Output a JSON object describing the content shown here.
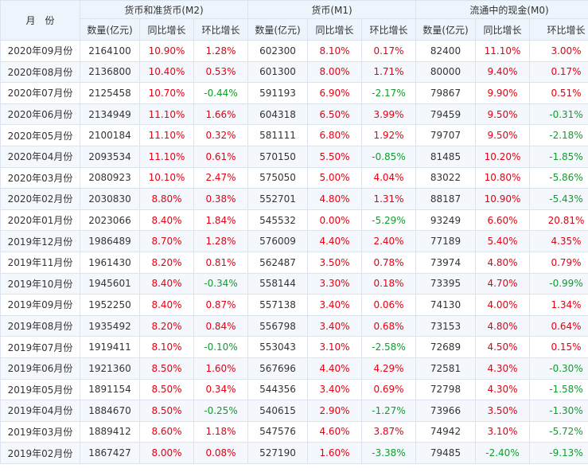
{
  "header": {
    "month": "月　份",
    "m2": "货币和准货币(M2)",
    "m1": "货币(M1)",
    "m0": "流通中的现金(M0)",
    "qty": "数量(亿元)",
    "yoy": "同比增长",
    "mom": "环比增长"
  },
  "colors": {
    "up": "#e60012",
    "down": "#0f9d2c",
    "header_bg": "#edf4fc",
    "stripe": "#f4f8fc"
  },
  "rows": [
    {
      "month": "2020年09月份",
      "m2": "2164100",
      "m2_yoy": "10.90%",
      "m2_mom": "1.28%",
      "m1": "602300",
      "m1_yoy": "8.10%",
      "m1_mom": "0.17%",
      "m0": "82400",
      "m0_yoy": "11.10%",
      "m0_mom": "3.00%"
    },
    {
      "month": "2020年08月份",
      "m2": "2136800",
      "m2_yoy": "10.40%",
      "m2_mom": "0.53%",
      "m1": "601300",
      "m1_yoy": "8.00%",
      "m1_mom": "1.71%",
      "m0": "80000",
      "m0_yoy": "9.40%",
      "m0_mom": "0.17%"
    },
    {
      "month": "2020年07月份",
      "m2": "2125458",
      "m2_yoy": "10.70%",
      "m2_mom": "-0.44%",
      "m1": "591193",
      "m1_yoy": "6.90%",
      "m1_mom": "-2.17%",
      "m0": "79867",
      "m0_yoy": "9.90%",
      "m0_mom": "0.51%"
    },
    {
      "month": "2020年06月份",
      "m2": "2134949",
      "m2_yoy": "11.10%",
      "m2_mom": "1.66%",
      "m1": "604318",
      "m1_yoy": "6.50%",
      "m1_mom": "3.99%",
      "m0": "79459",
      "m0_yoy": "9.50%",
      "m0_mom": "-0.31%"
    },
    {
      "month": "2020年05月份",
      "m2": "2100184",
      "m2_yoy": "11.10%",
      "m2_mom": "0.32%",
      "m1": "581111",
      "m1_yoy": "6.80%",
      "m1_mom": "1.92%",
      "m0": "79707",
      "m0_yoy": "9.50%",
      "m0_mom": "-2.18%"
    },
    {
      "month": "2020年04月份",
      "m2": "2093534",
      "m2_yoy": "11.10%",
      "m2_mom": "0.61%",
      "m1": "570150",
      "m1_yoy": "5.50%",
      "m1_mom": "-0.85%",
      "m0": "81485",
      "m0_yoy": "10.20%",
      "m0_mom": "-1.85%"
    },
    {
      "month": "2020年03月份",
      "m2": "2080923",
      "m2_yoy": "10.10%",
      "m2_mom": "2.47%",
      "m1": "575050",
      "m1_yoy": "5.00%",
      "m1_mom": "4.04%",
      "m0": "83022",
      "m0_yoy": "10.80%",
      "m0_mom": "-5.86%"
    },
    {
      "month": "2020年02月份",
      "m2": "2030830",
      "m2_yoy": "8.80%",
      "m2_mom": "0.38%",
      "m1": "552701",
      "m1_yoy": "4.80%",
      "m1_mom": "1.31%",
      "m0": "88187",
      "m0_yoy": "10.90%",
      "m0_mom": "-5.43%"
    },
    {
      "month": "2020年01月份",
      "m2": "2023066",
      "m2_yoy": "8.40%",
      "m2_mom": "1.84%",
      "m1": "545532",
      "m1_yoy": "0.00%",
      "m1_mom": "-5.29%",
      "m0": "93249",
      "m0_yoy": "6.60%",
      "m0_mom": "20.81%"
    },
    {
      "month": "2019年12月份",
      "m2": "1986489",
      "m2_yoy": "8.70%",
      "m2_mom": "1.28%",
      "m1": "576009",
      "m1_yoy": "4.40%",
      "m1_mom": "2.40%",
      "m0": "77189",
      "m0_yoy": "5.40%",
      "m0_mom": "4.35%"
    },
    {
      "month": "2019年11月份",
      "m2": "1961430",
      "m2_yoy": "8.20%",
      "m2_mom": "0.81%",
      "m1": "562487",
      "m1_yoy": "3.50%",
      "m1_mom": "0.78%",
      "m0": "73974",
      "m0_yoy": "4.80%",
      "m0_mom": "0.79%"
    },
    {
      "month": "2019年10月份",
      "m2": "1945601",
      "m2_yoy": "8.40%",
      "m2_mom": "-0.34%",
      "m1": "558144",
      "m1_yoy": "3.30%",
      "m1_mom": "0.18%",
      "m0": "73395",
      "m0_yoy": "4.70%",
      "m0_mom": "-0.99%"
    },
    {
      "month": "2019年09月份",
      "m2": "1952250",
      "m2_yoy": "8.40%",
      "m2_mom": "0.87%",
      "m1": "557138",
      "m1_yoy": "3.40%",
      "m1_mom": "0.06%",
      "m0": "74130",
      "m0_yoy": "4.00%",
      "m0_mom": "1.34%"
    },
    {
      "month": "2019年08月份",
      "m2": "1935492",
      "m2_yoy": "8.20%",
      "m2_mom": "0.84%",
      "m1": "556798",
      "m1_yoy": "3.40%",
      "m1_mom": "0.68%",
      "m0": "73153",
      "m0_yoy": "4.80%",
      "m0_mom": "0.64%"
    },
    {
      "month": "2019年07月份",
      "m2": "1919411",
      "m2_yoy": "8.10%",
      "m2_mom": "-0.10%",
      "m1": "553043",
      "m1_yoy": "3.10%",
      "m1_mom": "-2.58%",
      "m0": "72689",
      "m0_yoy": "4.50%",
      "m0_mom": "0.15%"
    },
    {
      "month": "2019年06月份",
      "m2": "1921360",
      "m2_yoy": "8.50%",
      "m2_mom": "1.60%",
      "m1": "567696",
      "m1_yoy": "4.40%",
      "m1_mom": "4.29%",
      "m0": "72581",
      "m0_yoy": "4.30%",
      "m0_mom": "-0.30%"
    },
    {
      "month": "2019年05月份",
      "m2": "1891154",
      "m2_yoy": "8.50%",
      "m2_mom": "0.34%",
      "m1": "544356",
      "m1_yoy": "3.40%",
      "m1_mom": "0.69%",
      "m0": "72798",
      "m0_yoy": "4.30%",
      "m0_mom": "-1.58%"
    },
    {
      "month": "2019年04月份",
      "m2": "1884670",
      "m2_yoy": "8.50%",
      "m2_mom": "-0.25%",
      "m1": "540615",
      "m1_yoy": "2.90%",
      "m1_mom": "-1.27%",
      "m0": "73966",
      "m0_yoy": "3.50%",
      "m0_mom": "-1.30%"
    },
    {
      "month": "2019年03月份",
      "m2": "1889412",
      "m2_yoy": "8.60%",
      "m2_mom": "1.18%",
      "m1": "547576",
      "m1_yoy": "4.60%",
      "m1_mom": "3.87%",
      "m0": "74942",
      "m0_yoy": "3.10%",
      "m0_mom": "-5.72%"
    },
    {
      "month": "2019年02月份",
      "m2": "1867427",
      "m2_yoy": "8.00%",
      "m2_mom": "0.08%",
      "m1": "527190",
      "m1_yoy": "1.60%",
      "m1_mom": "-3.38%",
      "m0": "79485",
      "m0_yoy": "-2.40%",
      "m0_mom": "-9.13%"
    }
  ]
}
